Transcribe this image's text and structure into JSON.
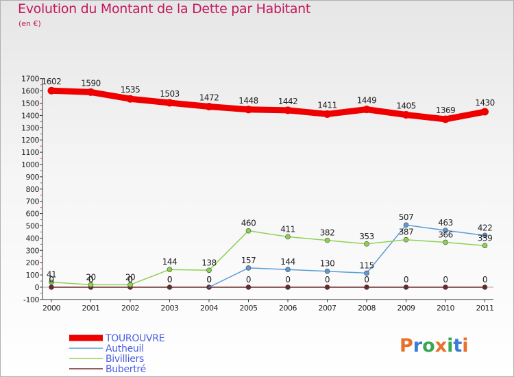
{
  "title": "Evolution du Montant de la Dette par Habitant",
  "subtitle": "(en €)",
  "logo": {
    "text": "Proxiti",
    "colors": [
      "#e8702a",
      "#3a7bd5",
      "#3aa655",
      "#e8702a",
      "#3aa655",
      "#3a7bd5",
      "#e8702a"
    ]
  },
  "chart_data": {
    "type": "line",
    "title": "Evolution du Montant de la Dette par Habitant",
    "ylabel": "(en €)",
    "x": [
      "2000",
      "2001",
      "2002",
      "2003",
      "2004",
      "2005",
      "2006",
      "2007",
      "2008",
      "2009",
      "2010",
      "2011"
    ],
    "ylim": [
      -100,
      1700
    ],
    "yticks": [
      -100,
      0,
      100,
      200,
      300,
      400,
      500,
      600,
      700,
      800,
      900,
      1000,
      1100,
      1200,
      1300,
      1400,
      1500,
      1600,
      1700
    ],
    "grid": false,
    "legend": "bottom-left",
    "series": [
      {
        "name": "TOUROUVRE",
        "color": "#ee0000",
        "values": [
          1602,
          1590,
          1535,
          1503,
          1472,
          1448,
          1442,
          1411,
          1449,
          1405,
          1369,
          1430
        ]
      },
      {
        "name": "Autheuil",
        "color": "#5b9bd5",
        "values": [
          null,
          null,
          null,
          null,
          null,
          157,
          144,
          130,
          115,
          507,
          463,
          422
        ],
        "labels": [
          "0",
          "0",
          "0",
          "0",
          "0",
          "157",
          "144",
          "130",
          "115",
          "507",
          "463",
          "422"
        ]
      },
      {
        "name": "Bivilliers",
        "color": "#8ed14f",
        "values": [
          41,
          20,
          20,
          144,
          138,
          460,
          411,
          382,
          353,
          387,
          366,
          339
        ]
      },
      {
        "name": "Bubertré",
        "color": "#6b2a2a",
        "values": [
          0,
          0,
          0,
          0,
          0,
          0,
          0,
          0,
          0,
          0,
          0,
          0
        ]
      }
    ]
  }
}
